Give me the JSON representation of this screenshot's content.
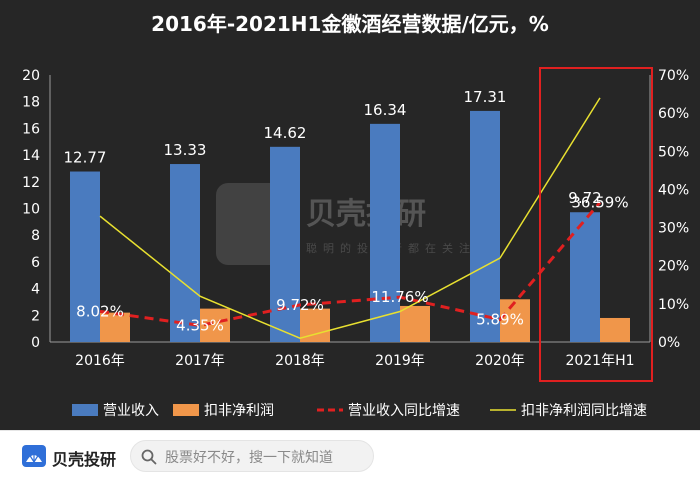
{
  "chart_data": {
    "type": "bar",
    "title": "2016年-2021H1金徽酒经营数据/亿元，%",
    "categories": [
      "2016年",
      "2017年",
      "2018年",
      "2019年",
      "2020年",
      "2021年H1"
    ],
    "series": [
      {
        "name": "营业收入",
        "type": "bar",
        "axis": "left",
        "color": "#4a7bbf",
        "values": [
          12.77,
          13.33,
          14.62,
          16.34,
          17.31,
          9.72
        ],
        "labels": [
          "12.77",
          "13.33",
          "14.62",
          "16.34",
          "17.31",
          "9.72"
        ]
      },
      {
        "name": "扣非净利润",
        "type": "bar",
        "axis": "left",
        "color": "#f0964a",
        "values": [
          2.2,
          2.5,
          2.5,
          2.7,
          3.2,
          1.8
        ]
      },
      {
        "name": "营业收入同比增速",
        "type": "line",
        "style": "dashed",
        "axis": "right",
        "color": "#e02020",
        "values": [
          8.02,
          4.35,
          9.72,
          11.76,
          5.89,
          36.59
        ],
        "labels": [
          "8.02%",
          "4.35%",
          "9.72%",
          "11.76%",
          "5.89%",
          "36.59%"
        ]
      },
      {
        "name": "扣非净利润同比增速",
        "type": "line",
        "axis": "right",
        "color": "#e8e030",
        "values": [
          33,
          12,
          1,
          8,
          22,
          64
        ]
      }
    ],
    "y_left": {
      "min": 0,
      "max": 20,
      "ticks": [
        "0",
        "2",
        "4",
        "6",
        "8",
        "10",
        "12",
        "14",
        "16",
        "18",
        "20"
      ]
    },
    "y_right": {
      "min": 0,
      "max": 70,
      "ticks": [
        "0%",
        "10%",
        "20%",
        "30%",
        "40%",
        "50%",
        "60%",
        "70%"
      ]
    },
    "grid": false,
    "legend": "bottom",
    "highlight": {
      "category": "2021年H1",
      "color": "#e02020"
    }
  },
  "watermark": {
    "brand": "贝壳投研",
    "tagline": "聪明的投资者都在关注"
  },
  "footer": {
    "brand": "贝壳投研",
    "search_placeholder": "股票好不好，搜一下就知道"
  },
  "colors": {
    "background": "#262626",
    "text": "#ffffff",
    "footer_bg": "#ffffff"
  }
}
